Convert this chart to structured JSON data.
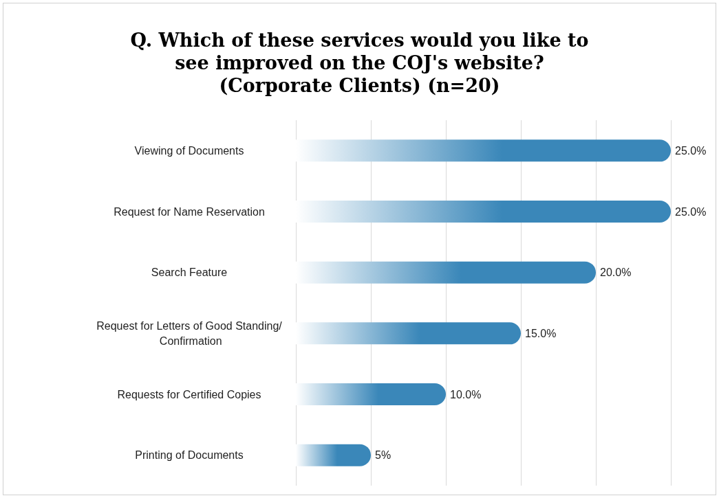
{
  "chart_data": {
    "type": "bar",
    "orientation": "horizontal",
    "title": "Q. Which of these services would you like to see improved on the COJ's website? (Corporate Clients) (n=20)",
    "categories": [
      "Viewing of Documents",
      "Request for Name Reservation",
      "Search Feature",
      "Request for Letters of Good Standing/ Confirmation",
      "Requests for Certified Copies",
      "Printing of Documents"
    ],
    "values": [
      25,
      25,
      20,
      15,
      10,
      5
    ],
    "value_labels": [
      "25.0%",
      "25.0%",
      "20.0%",
      "15.0%",
      "10.0%",
      "5%"
    ],
    "color": "#3a87b9",
    "xlim": [
      0,
      25
    ],
    "xticks": [
      {
        "value": 0,
        "label": null
      },
      {
        "value": 5,
        "label": null
      },
      {
        "value": 10,
        "label": null
      },
      {
        "value": 15,
        "label": null
      },
      {
        "value": 20,
        "label": null
      },
      {
        "value": 25,
        "label": null
      }
    ],
    "grid": "x",
    "tick_labels": "y"
  }
}
